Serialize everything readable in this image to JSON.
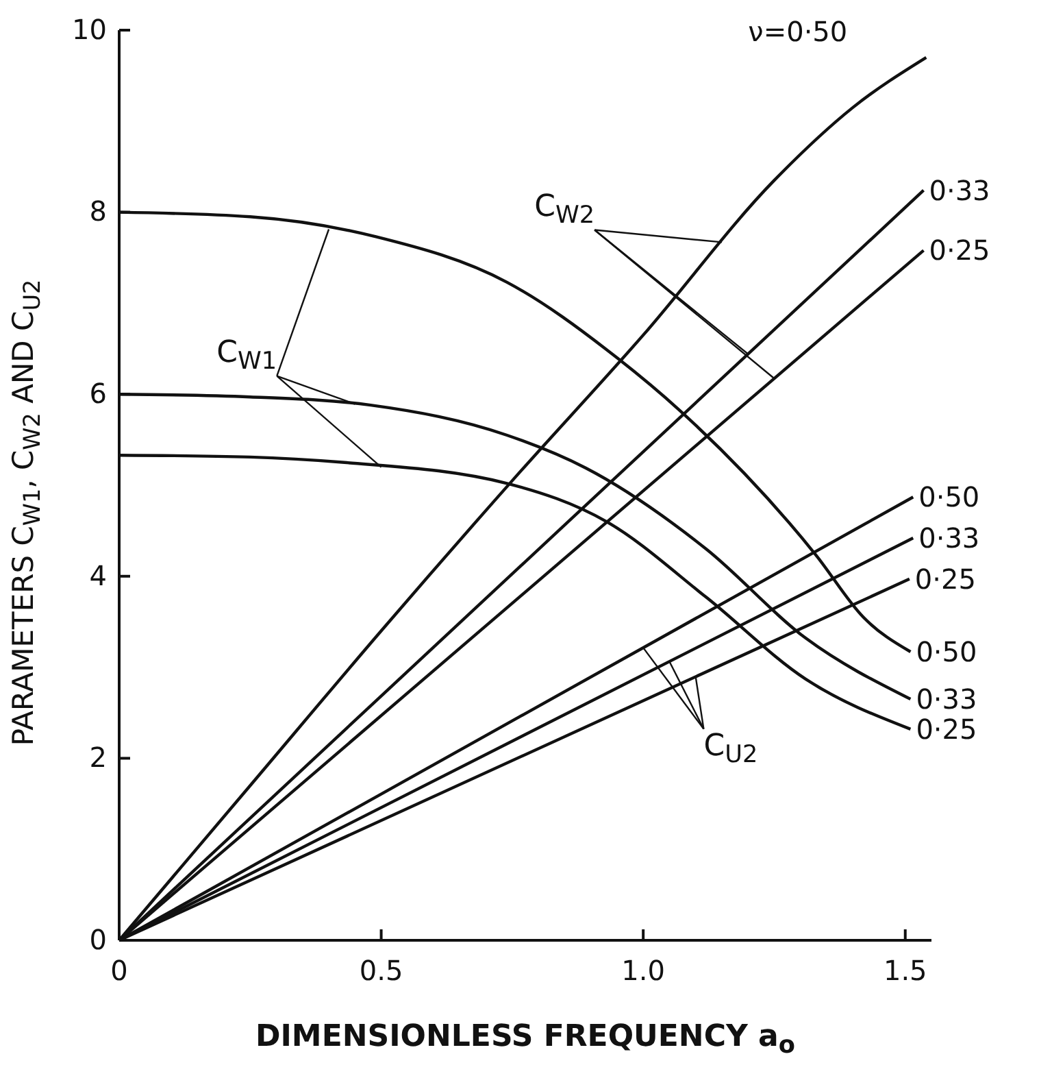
{
  "chart_data": {
    "type": "line",
    "xlabel": "DIMENSIONLESS FREQUENCY a$_{o}$",
    "ylabel": "PARAMETERS C$_{W1}$, C$_{W2}$ AND C$_{U2}$",
    "xlim": [
      0,
      1.55
    ],
    "ylim": [
      0,
      10
    ],
    "xticks": [
      0,
      0.5,
      {
        "value": 1.0,
        "label": "1.0"
      },
      1.5
    ],
    "yticks": [
      0,
      2,
      4,
      6,
      8,
      10
    ],
    "grid": false,
    "marker": "none",
    "line_style": "solid",
    "series": [
      {
        "name": "ν=0·50",
        "color": "#111111",
        "x": [
          0,
          0.25,
          0.5,
          0.75,
          1.0,
          1.25,
          1.4,
          1.54
        ],
        "values": [
          0,
          1.7,
          3.4,
          5.05,
          6.65,
          8.35,
          9.15,
          9.7
        ]
      },
      {
        "name": "0·33",
        "color": "#111111",
        "x": [
          0,
          1.535
        ],
        "values": [
          0,
          8.24
        ]
      },
      {
        "name": "0·25",
        "color": "#111111",
        "x": [
          0,
          1.535
        ],
        "values": [
          0,
          7.58
        ]
      },
      {
        "name": "0·50",
        "color": "#111111",
        "x": [
          0,
          0.25,
          0.49,
          0.74,
          0.95,
          1.07,
          1.33,
          1.42,
          1.51
        ],
        "values": [
          8.0,
          7.95,
          7.73,
          7.23,
          6.4,
          5.82,
          4.23,
          3.55,
          3.17
        ]
      },
      {
        "name": "0·33",
        "color": "#111111",
        "x": [
          0,
          0.25,
          0.48,
          0.74,
          0.89,
          1.12,
          1.31,
          1.51
        ],
        "values": [
          6.0,
          5.97,
          5.88,
          5.55,
          5.19,
          4.3,
          3.32,
          2.65
        ]
      },
      {
        "name": "0·25",
        "color": "#111111",
        "x": [
          0,
          0.25,
          0.43,
          0.74,
          0.93,
          1.12,
          1.31,
          1.51
        ],
        "values": [
          5.33,
          5.31,
          5.25,
          5.02,
          4.6,
          3.77,
          2.87,
          2.32
        ]
      },
      {
        "name": "0·50",
        "color": "#111111",
        "x": [
          0,
          1.515
        ],
        "values": [
          0,
          4.87
        ]
      },
      {
        "name": "0·33",
        "color": "#111111",
        "x": [
          0,
          1.515
        ],
        "values": [
          0,
          4.42
        ]
      },
      {
        "name": "0·25",
        "color": "#111111",
        "x": [
          0,
          1.508
        ],
        "values": [
          0,
          3.97
        ]
      }
    ],
    "annotations": [
      {
        "text": "C$_{W2}$",
        "x": 1.2,
        "y": 6.44
      },
      {
        "text": "C$_{W1}$",
        "x": 0.45,
        "y": 5.89
      },
      {
        "text": "C$_{U2}$",
        "x": 1.05,
        "y": 3.06
      }
    ]
  }
}
